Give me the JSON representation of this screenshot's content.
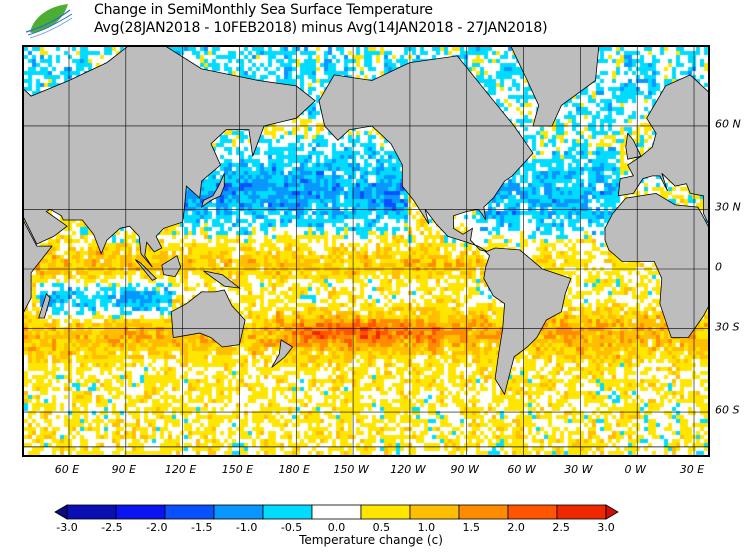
{
  "header": {
    "title_line1": "Change in SemiMonthly Sea Surface Temperature",
    "title_line2": "Avg(28JAN2018 - 10FEB2018) minus Avg(14JAN2018 - 27JAN2018)",
    "logo": "leaf-wave-logo"
  },
  "map": {
    "lon_labels": [
      "60 E",
      "90 E",
      "120 E",
      "150 E",
      "180 E",
      "150 W",
      "120 W",
      "90 W",
      "60 W",
      "30 W",
      "0 W",
      "30 E"
    ],
    "lat_labels": [
      "60 N",
      "30 N",
      "0",
      "30 S",
      "60 S"
    ],
    "land_color": "#bdbdbd"
  },
  "colorbar": {
    "title": "Temperature change  (c)",
    "tick_labels": [
      "-3.0",
      "-2.5",
      "-2.0",
      "-1.5",
      "-1.0",
      "-0.5",
      "0.0",
      "0.5",
      "1.0",
      "1.5",
      "2.0",
      "2.5",
      "3.0"
    ],
    "colors": [
      "#0c0c7e",
      "#0a0fb4",
      "#0a14f0",
      "#0a50ff",
      "#0a96ff",
      "#00dcff",
      "#ffffff",
      "#ffe600",
      "#ffbe00",
      "#ff8c00",
      "#ff5500",
      "#f02800",
      "#d20f0f"
    ]
  }
}
